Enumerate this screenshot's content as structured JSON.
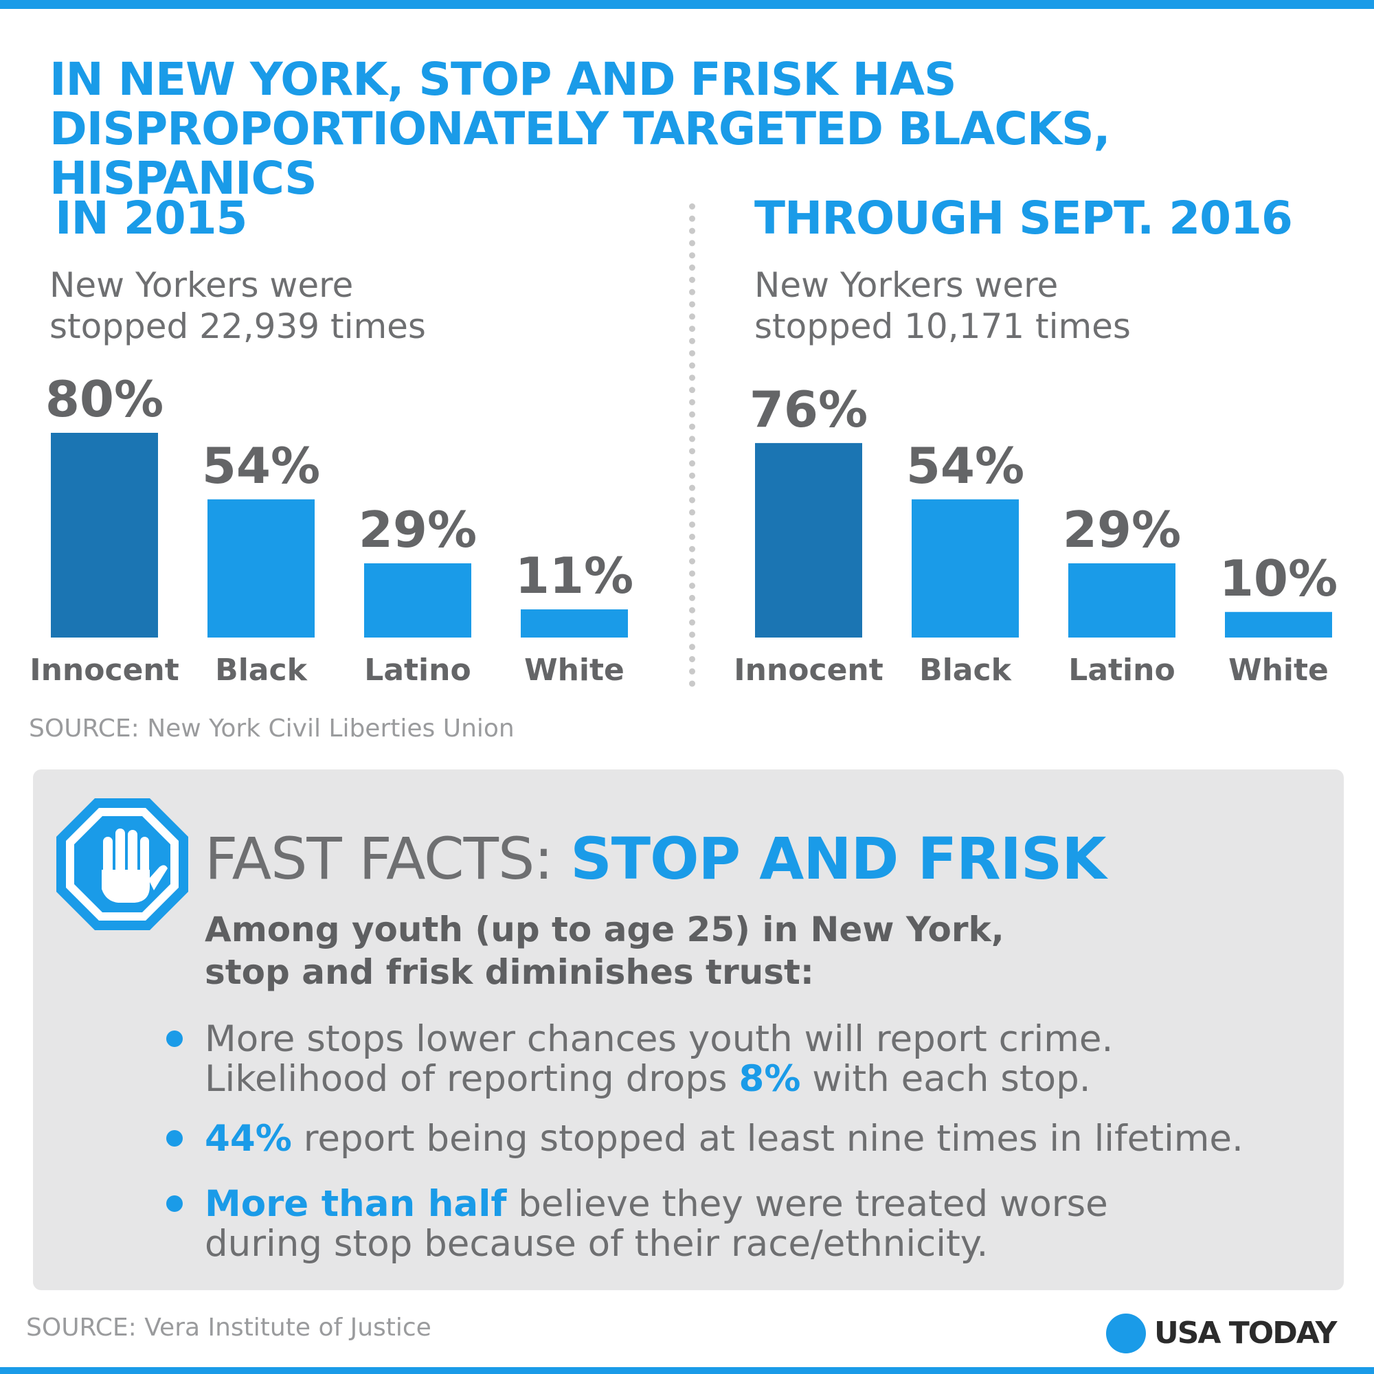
{
  "colors": {
    "accent": "#1A9BE8",
    "dark_bar": "#1B75B3",
    "text_gray": "#646567",
    "panel_bg": "#E6E6E7"
  },
  "headline": {
    "line1": "IN NEW YORK, STOP AND FRISK HAS",
    "line2": "DISPROPORTIONATELY TARGETED BLACKS, HISPANICS"
  },
  "panels": [
    {
      "title": "IN 2015",
      "sub_line1": "New Yorkers were",
      "sub_line2": "stopped 22,939 times"
    },
    {
      "title": "THROUGH SEPT. 2016",
      "sub_line1": "New Yorkers were",
      "sub_line2": "stopped 10,171 times"
    }
  ],
  "chart_data": [
    {
      "type": "bar",
      "title": "IN 2015",
      "categories": [
        "Innocent",
        "Black",
        "Latino",
        "White"
      ],
      "values": [
        80,
        54,
        29,
        11
      ],
      "labels": [
        "80%",
        "54%",
        "29%",
        "11%"
      ],
      "unit": "%",
      "ylim": [
        0,
        80
      ],
      "highlight": "Innocent",
      "grid": false
    },
    {
      "type": "bar",
      "title": "THROUGH SEPT. 2016",
      "categories": [
        "Innocent",
        "Black",
        "Latino",
        "White"
      ],
      "values": [
        76,
        54,
        29,
        10
      ],
      "labels": [
        "76%",
        "54%",
        "29%",
        "10%"
      ],
      "unit": "%",
      "ylim": [
        0,
        80
      ],
      "highlight": "Innocent",
      "grid": false
    }
  ],
  "source_top": "SOURCE: New York Civil Liberties Union",
  "fast_facts": {
    "icon": "stop-hand-icon",
    "title_plain": "FAST FACTS: ",
    "title_strong": "STOP AND FRISK",
    "intro_line1": "Among youth (up to age 25) in New York,",
    "intro_line2": "stop and frisk diminishes trust:",
    "bullets": [
      {
        "text1": "More stops lower chances youth will report crime.",
        "text2": "Likelihood of reporting drops ",
        "highlight": "8%",
        "text3": " with each stop."
      },
      {
        "highlight": "44%",
        "text": " report being stopped at least nine times in lifetime."
      },
      {
        "highlight": "More than half",
        "text1": " believe they were treated worse",
        "text2": "during stop because of their race/ethnicity."
      }
    ]
  },
  "source_bottom": "SOURCE: Vera Institute of Justice",
  "brand": "USA TODAY"
}
